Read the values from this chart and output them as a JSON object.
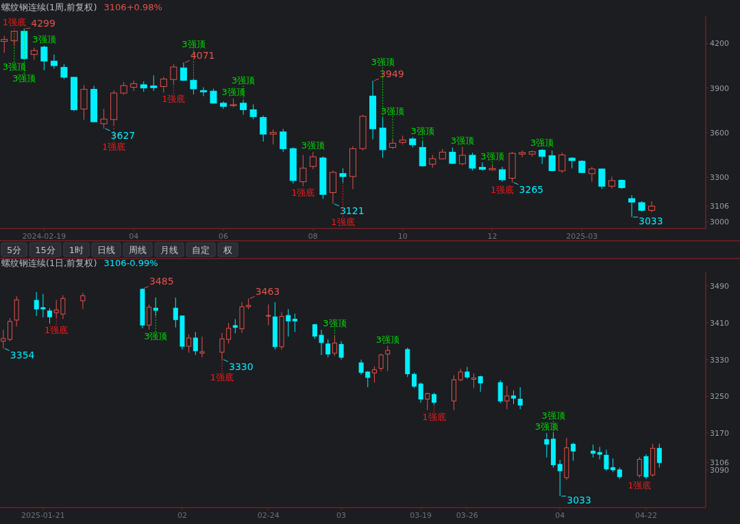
{
  "chart_data": [
    {
      "type": "candlestick",
      "title": "螺纹钢连续(1周,前复权)",
      "subtitle": "3106+0.98%",
      "x": [
        "2024-01-22",
        "2024-01-29",
        "2024-02-05",
        "2024-02-12",
        "2024-02-19",
        "2024-02-26",
        "2024-03-04",
        "2024-03-11",
        "2024-03-18",
        "2024-03-25",
        "2024-04-01",
        "2024-04-08",
        "2024-04-15",
        "2024-04-22",
        "2024-04-29",
        "2024-05-06",
        "2024-05-13",
        "2024-05-20",
        "2024-05-27",
        "2024-06-03",
        "2024-06-10",
        "2024-06-17",
        "2024-06-24",
        "2024-07-01",
        "2024-07-08",
        "2024-07-15",
        "2024-07-22",
        "2024-07-29",
        "2024-08-05",
        "2024-08-12",
        "2024-08-19",
        "2024-08-26",
        "2024-09-02",
        "2024-09-09",
        "2024-09-16",
        "2024-09-23",
        "2024-09-30",
        "2024-10-07",
        "2024-10-14",
        "2024-10-21",
        "2024-10-28",
        "2024-11-04",
        "2024-11-11",
        "2024-11-18",
        "2024-11-25",
        "2024-12-02",
        "2024-12-09",
        "2024-12-16",
        "2024-12-23",
        "2024-12-30",
        "2025-01-06",
        "2025-01-13",
        "2025-01-20",
        "2025-01-27",
        "2025-02-03",
        "2025-02-10",
        "2025-02-17",
        "2025-02-24",
        "2025-03-03",
        "2025-03-10",
        "2025-03-17",
        "2025-03-24",
        "2025-03-31",
        "2025-04-07",
        "2025-04-14",
        "2025-04-21"
      ],
      "ohlc": [
        [
          4213,
          4250,
          4136,
          4226
        ],
        [
          4217,
          4285,
          4183,
          4281
        ],
        [
          4281,
          4299,
          4090,
          4097
        ],
        [
          4125,
          4170,
          4090,
          4152
        ],
        [
          4175,
          4185,
          4019,
          4081
        ],
        [
          4081,
          4125,
          4030,
          4050
        ],
        [
          4039,
          4060,
          3960,
          3972
        ],
        [
          3972,
          3975,
          3745,
          3754
        ],
        [
          3759,
          3920,
          3687,
          3891
        ],
        [
          3891,
          3915,
          3668,
          3673
        ],
        [
          3660,
          3760,
          3627,
          3691
        ],
        [
          3688,
          3885,
          3650,
          3866
        ],
        [
          3866,
          3940,
          3855,
          3916
        ],
        [
          3905,
          3950,
          3880,
          3929
        ],
        [
          3922,
          3945,
          3875,
          3900
        ],
        [
          3914,
          3985,
          3880,
          3902
        ],
        [
          3910,
          3975,
          3870,
          3960
        ],
        [
          3957,
          4060,
          3925,
          4041
        ],
        [
          4035,
          4071,
          3947,
          3952
        ],
        [
          3952,
          3960,
          3857,
          3894
        ],
        [
          3883,
          3905,
          3845,
          3874
        ],
        [
          3879,
          3895,
          3795,
          3798
        ],
        [
          3798,
          3810,
          3760,
          3776
        ],
        [
          3782,
          3830,
          3770,
          3788
        ],
        [
          3798,
          3815,
          3720,
          3754
        ],
        [
          3754,
          3790,
          3690,
          3707
        ],
        [
          3702,
          3715,
          3540,
          3590
        ],
        [
          3590,
          3620,
          3520,
          3601
        ],
        [
          3605,
          3625,
          3470,
          3492
        ],
        [
          3493,
          3500,
          3258,
          3278
        ],
        [
          3270,
          3450,
          3240,
          3361
        ],
        [
          3373,
          3470,
          3355,
          3438
        ],
        [
          3430,
          3440,
          3155,
          3185
        ],
        [
          3197,
          3345,
          3121,
          3333
        ],
        [
          3325,
          3360,
          3265,
          3305
        ],
        [
          3305,
          3510,
          3220,
          3492
        ],
        [
          3493,
          3720,
          3480,
          3710
        ],
        [
          3846,
          3949,
          3555,
          3626
        ],
        [
          3631,
          3700,
          3430,
          3485
        ],
        [
          3501,
          3555,
          3490,
          3529
        ],
        [
          3534,
          3580,
          3520,
          3550
        ],
        [
          3558,
          3570,
          3500,
          3518
        ],
        [
          3501,
          3540,
          3370,
          3377
        ],
        [
          3388,
          3450,
          3365,
          3425
        ],
        [
          3424,
          3490,
          3420,
          3469
        ],
        [
          3469,
          3500,
          3390,
          3393
        ],
        [
          3391,
          3505,
          3380,
          3448
        ],
        [
          3448,
          3465,
          3345,
          3361
        ],
        [
          3367,
          3400,
          3345,
          3353
        ],
        [
          3350,
          3380,
          3345,
          3359
        ],
        [
          3351,
          3370,
          3270,
          3283
        ],
        [
          3294,
          3470,
          3265,
          3461
        ],
        [
          3456,
          3480,
          3435,
          3466
        ],
        [
          3456,
          3480,
          3440,
          3472
        ],
        [
          3482,
          3490,
          3390,
          3440
        ],
        [
          3445,
          3480,
          3340,
          3345
        ],
        [
          3343,
          3465,
          3330,
          3450
        ],
        [
          3429,
          3435,
          3360,
          3412
        ],
        [
          3408,
          3415,
          3328,
          3332
        ],
        [
          3324,
          3370,
          3270,
          3356
        ],
        [
          3356,
          3358,
          3222,
          3240
        ],
        [
          3240,
          3305,
          3225,
          3278
        ],
        [
          3280,
          3285,
          3222,
          3230
        ],
        [
          3157,
          3180,
          3033,
          3133
        ],
        [
          3130,
          3140,
          3070,
          3078
        ],
        [
          3078,
          3138,
          3066,
          3106
        ]
      ],
      "xlim": [
        "2024-01-19",
        "2025-05-29"
      ],
      "ylim": [
        2956,
        4381
      ],
      "yticks": [
        3000,
        3106,
        3300,
        3600,
        3900,
        4200
      ],
      "xticks": [
        {
          "value": "2024-02-19",
          "label": "2024-02-19"
        },
        {
          "value": "2024-04-22",
          "label": "04"
        },
        {
          "value": "2024-06-24",
          "label": "06"
        },
        {
          "value": "2024-08-26",
          "label": "08"
        },
        {
          "value": "2024-10-28",
          "label": "10"
        },
        {
          "value": "2024-12-30",
          "label": "12"
        },
        {
          "value": "2025-03-03",
          "label": "2025-03"
        }
      ],
      "annotations": [
        {
          "text": "4299",
          "x": "2024-02-05",
          "y": 4299
        },
        {
          "text": "3627",
          "x": "2024-04-01",
          "y": 3627
        },
        {
          "text": "4071",
          "x": "2024-05-27",
          "y": 4071
        },
        {
          "text": "3121",
          "x": "2024-09-09",
          "y": 3121
        },
        {
          "text": "3949",
          "x": "2024-10-07",
          "y": 3949
        },
        {
          "text": "3265",
          "x": "2025-01-13",
          "y": 3265
        },
        {
          "text": "3033",
          "x": "2025-04-07",
          "y": 3033
        },
        {
          "text": "3强顶",
          "x": "2024-01-29",
          "y": 4285
        },
        {
          "text": "3强顶",
          "x": "2024-02-05",
          "y": 4299
        },
        {
          "text": "3强顶",
          "x": "2024-02-19",
          "y": 4185
        },
        {
          "text": "3强顶",
          "x": "2024-06-03",
          "y": 3960
        },
        {
          "text": "3强顶",
          "x": "2024-07-01",
          "y": 3830
        },
        {
          "text": "3强顶",
          "x": "2024-07-08",
          "y": 3815
        },
        {
          "text": "3强顶",
          "x": "2024-08-26",
          "y": 3470
        },
        {
          "text": "3强顶",
          "x": "2024-10-14",
          "y": 3700
        },
        {
          "text": "3强顶",
          "x": "2024-10-21",
          "y": 3555
        },
        {
          "text": "3强顶",
          "x": "2024-11-11",
          "y": 3540
        },
        {
          "text": "3强顶",
          "x": "2024-12-09",
          "y": 3505
        },
        {
          "text": "3强顶",
          "x": "2024-12-30",
          "y": 3380
        },
        {
          "text": "3强顶",
          "x": "2025-02-03",
          "y": 3490
        },
        {
          "text": "1强底",
          "x": "2024-01-29",
          "y": 4183
        },
        {
          "text": "1强底",
          "x": "2024-04-08",
          "y": 3650
        },
        {
          "text": "1强底",
          "x": "2024-05-20",
          "y": 3925
        },
        {
          "text": "1强底",
          "x": "2024-08-19",
          "y": 3240
        },
        {
          "text": "1强底",
          "x": "2024-09-16",
          "y": 3265
        },
        {
          "text": "1强底",
          "x": "2025-01-06",
          "y": 3270
        }
      ]
    },
    {
      "type": "other",
      "annotations": [
        "5分",
        "15分",
        "1时",
        "日线",
        "周线",
        "月线",
        "自定",
        "权"
      ]
    },
    {
      "type": "candlestick",
      "title": "螺纹钢连续(1日,前复权)",
      "subtitle": "3106-0.99%",
      "x": [
        "2025-01-15",
        "2025-01-16",
        "2025-01-17",
        "2025-01-20",
        "2025-01-21",
        "2025-01-22",
        "2025-01-23",
        "2025-01-24",
        "2025-01-27",
        "2025-02-05",
        "2025-02-06",
        "2025-02-07",
        "2025-02-10",
        "2025-02-11",
        "2025-02-12",
        "2025-02-13",
        "2025-02-14",
        "2025-02-17",
        "2025-02-18",
        "2025-02-19",
        "2025-02-20",
        "2025-02-21",
        "2025-02-24",
        "2025-02-25",
        "2025-02-26",
        "2025-02-27",
        "2025-02-28",
        "2025-03-03",
        "2025-03-04",
        "2025-03-05",
        "2025-03-06",
        "2025-03-07",
        "2025-03-10",
        "2025-03-11",
        "2025-03-12",
        "2025-03-13",
        "2025-03-14",
        "2025-03-17",
        "2025-03-18",
        "2025-03-19",
        "2025-03-20",
        "2025-03-21",
        "2025-03-24",
        "2025-03-25",
        "2025-03-26",
        "2025-03-27",
        "2025-03-28",
        "2025-03-31",
        "2025-04-01",
        "2025-04-02",
        "2025-04-03",
        "2025-04-07",
        "2025-04-08",
        "2025-04-09",
        "2025-04-10",
        "2025-04-11",
        "2025-04-14",
        "2025-04-15",
        "2025-04-16",
        "2025-04-17",
        "2025-04-18",
        "2025-04-21",
        "2025-04-22",
        "2025-04-23",
        "2025-04-24"
      ],
      "ohlc": [
        [
          3370,
          3395,
          3354,
          3376
        ],
        [
          3374,
          3420,
          3370,
          3413
        ],
        [
          3416,
          3468,
          3402,
          3460
        ],
        [
          3459,
          3477,
          3425,
          3440
        ],
        [
          3443,
          3473,
          3422,
          3440
        ],
        [
          3436,
          3442,
          3408,
          3423
        ],
        [
          3432,
          3460,
          3421,
          3438
        ],
        [
          3429,
          3470,
          3418,
          3463
        ],
        [
          3458,
          3475,
          3440,
          3469
        ],
        [
          3483,
          3485,
          3398,
          3405
        ],
        [
          3405,
          3450,
          3395,
          3444
        ],
        [
          3442,
          3465,
          3425,
          3437
        ],
        [
          3442,
          3465,
          3400,
          3417
        ],
        [
          3425,
          3425,
          3352,
          3359
        ],
        [
          3359,
          3385,
          3345,
          3377
        ],
        [
          3377,
          3390,
          3340,
          3349
        ],
        [
          3344,
          3380,
          3335,
          3347
        ],
        [
          3346,
          3388,
          3330,
          3375
        ],
        [
          3374,
          3410,
          3365,
          3398
        ],
        [
          3404,
          3418,
          3387,
          3400
        ],
        [
          3397,
          3455,
          3388,
          3445
        ],
        [
          3445,
          3463,
          3440,
          3448
        ],
        [
          3425,
          3450,
          3405,
          3426
        ],
        [
          3423,
          3455,
          3352,
          3358
        ],
        [
          3358,
          3433,
          3352,
          3424
        ],
        [
          3426,
          3440,
          3380,
          3414
        ],
        [
          3418,
          3430,
          3390,
          3414
        ],
        [
          3406,
          3408,
          3375,
          3381
        ],
        [
          3383,
          3395,
          3340,
          3367
        ],
        [
          3364,
          3374,
          3335,
          3342
        ],
        [
          3344,
          3380,
          3338,
          3366
        ],
        [
          3363,
          3370,
          3330,
          3335
        ],
        [
          3323,
          3330,
          3297,
          3302
        ],
        [
          3303,
          3305,
          3270,
          3291
        ],
        [
          3301,
          3315,
          3280,
          3308
        ],
        [
          3311,
          3343,
          3305,
          3340
        ],
        [
          3342,
          3360,
          3305,
          3350
        ],
        [
          3352,
          3356,
          3292,
          3299
        ],
        [
          3298,
          3302,
          3268,
          3272
        ],
        [
          3277,
          3280,
          3236,
          3244
        ],
        [
          3244,
          3258,
          3220,
          3256
        ],
        [
          3254,
          3258,
          3232,
          3237
        ],
        [
          3240,
          3296,
          3220,
          3286
        ],
        [
          3286,
          3310,
          3283,
          3303
        ],
        [
          3303,
          3314,
          3288,
          3292
        ],
        [
          3287,
          3300,
          3268,
          3290
        ],
        [
          3293,
          3295,
          3260,
          3279
        ],
        [
          3280,
          3285,
          3235,
          3240
        ],
        [
          3240,
          3273,
          3222,
          3251
        ],
        [
          3251,
          3263,
          3233,
          3246
        ],
        [
          3244,
          3270,
          3222,
          3231
        ],
        [
          3156,
          3170,
          3117,
          3146
        ],
        [
          3157,
          3170,
          3095,
          3101
        ],
        [
          3102,
          3112,
          3033,
          3088
        ],
        [
          3073,
          3160,
          3068,
          3138
        ],
        [
          3146,
          3149,
          3110,
          3131
        ],
        [
          3131,
          3145,
          3117,
          3126
        ],
        [
          3128,
          3140,
          3113,
          3124
        ],
        [
          3122,
          3134,
          3088,
          3092
        ],
        [
          3095,
          3115,
          3085,
          3090
        ],
        [
          3090,
          3095,
          3070,
          3075
        ],
        [
          3078,
          3118,
          3073,
          3113
        ],
        [
          3119,
          3124,
          3070,
          3075
        ],
        [
          3079,
          3147,
          3075,
          3137
        ],
        [
          3137,
          3147,
          3095,
          3106
        ]
      ],
      "xlim": [
        "2025-01-14T12:00",
        "2025-05-01"
      ],
      "ylim": [
        3008,
        3520
      ],
      "yticks": [
        3090,
        3106,
        3170,
        3250,
        3330,
        3410,
        3490
      ],
      "xticks": [
        {
          "value": "2025-01-21",
          "label": "2025-01-21"
        },
        {
          "value": "2025-02-11",
          "label": "02"
        },
        {
          "value": "2025-02-24",
          "label": "02-24"
        },
        {
          "value": "2025-03-07",
          "label": "03"
        },
        {
          "value": "2025-03-19",
          "label": "03-19"
        },
        {
          "value": "2025-03-26",
          "label": "03-26"
        },
        {
          "value": "2025-04-09",
          "label": "04"
        },
        {
          "value": "2025-04-22",
          "label": "04-22"
        }
      ],
      "annotations": [
        {
          "text": "3354",
          "x": "2025-01-15",
          "y": 3354
        },
        {
          "text": "3485",
          "x": "2025-02-05",
          "y": 3485
        },
        {
          "text": "3330",
          "x": "2025-02-17",
          "y": 3330
        },
        {
          "text": "3463",
          "x": "2025-02-21",
          "y": 3463
        },
        {
          "text": "3033",
          "x": "2025-04-09",
          "y": 3033
        },
        {
          "text": "3强顶",
          "x": "2025-02-07",
          "y": 3465
        },
        {
          "text": "3强顶",
          "x": "2025-03-06",
          "y": 3380
        },
        {
          "text": "3强顶",
          "x": "2025-03-14",
          "y": 3360
        },
        {
          "text": "3强顶",
          "x": "2025-04-07",
          "y": 3170
        },
        {
          "text": "3强顶",
          "x": "2025-04-08",
          "y": 3170
        },
        {
          "text": "1强底",
          "x": "2025-01-23",
          "y": 3421
        },
        {
          "text": "1强底",
          "x": "2025-02-17",
          "y": 3330
        },
        {
          "text": "1强底",
          "x": "2025-03-21",
          "y": 3232
        },
        {
          "text": "1强底",
          "x": "2025-04-21",
          "y": 3073
        }
      ]
    }
  ]
}
